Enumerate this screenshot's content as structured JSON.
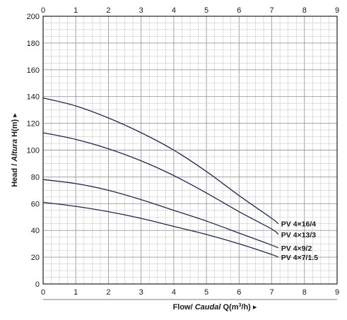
{
  "chart_data": {
    "type": "line",
    "xlabel_parts": [
      "Flow/ ",
      "Caudal",
      " Q(m",
      "3",
      "/h) ▸"
    ],
    "ylabel_parts": [
      "Head / ",
      "Altura",
      " H(m) ▸"
    ],
    "xlim": [
      0,
      9
    ],
    "ylim": [
      0,
      200
    ],
    "x_ticks": [
      "0",
      "1",
      "2",
      "3",
      "4",
      "5",
      "6",
      "7",
      "8",
      "9"
    ],
    "y_ticks": [
      "0",
      "20",
      "40",
      "60",
      "80",
      "100",
      "120",
      "140",
      "160",
      "180",
      "200"
    ],
    "grid": true,
    "line_color": "#1b2b57",
    "series": [
      {
        "name": "PV 4×16/4",
        "points": [
          [
            0,
            139
          ],
          [
            1,
            133
          ],
          [
            2,
            124
          ],
          [
            3,
            113
          ],
          [
            4,
            100
          ],
          [
            5,
            84
          ],
          [
            6,
            66
          ],
          [
            7,
            49
          ],
          [
            7.2,
            45
          ]
        ]
      },
      {
        "name": "PV 4×13/3",
        "points": [
          [
            0,
            113
          ],
          [
            1,
            108
          ],
          [
            2,
            101
          ],
          [
            3,
            92
          ],
          [
            4,
            81
          ],
          [
            5,
            68
          ],
          [
            6,
            54
          ],
          [
            7,
            41
          ],
          [
            7.2,
            37
          ]
        ]
      },
      {
        "name": "PV 4×9/2",
        "points": [
          [
            0,
            78
          ],
          [
            1,
            75
          ],
          [
            2,
            70
          ],
          [
            3,
            63
          ],
          [
            4,
            55
          ],
          [
            5,
            47
          ],
          [
            6,
            38
          ],
          [
            7,
            29
          ],
          [
            7.2,
            27
          ]
        ]
      },
      {
        "name": "PV 4×7/1.5",
        "points": [
          [
            0,
            61
          ],
          [
            1,
            58
          ],
          [
            2,
            54
          ],
          [
            3,
            49
          ],
          [
            4,
            43
          ],
          [
            5,
            37
          ],
          [
            6,
            30
          ],
          [
            7,
            22
          ],
          [
            7.2,
            20
          ]
        ]
      }
    ]
  }
}
